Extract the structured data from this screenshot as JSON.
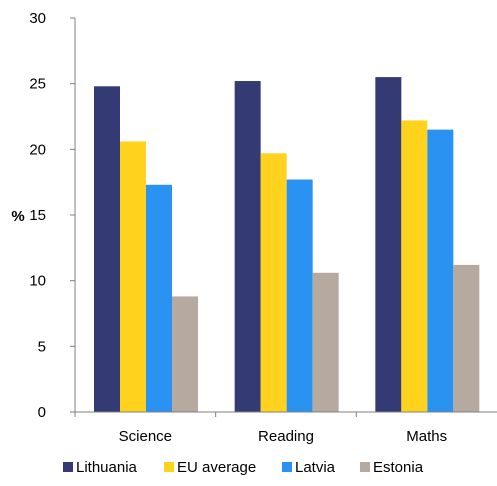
{
  "chart_data": {
    "type": "bar",
    "categories": [
      "Science",
      "Reading",
      "Maths"
    ],
    "series": [
      {
        "name": "Lithuania",
        "color": "#333a74",
        "values": [
          24.8,
          25.2,
          25.5
        ]
      },
      {
        "name": "EU average",
        "color": "#ffd21e",
        "values": [
          20.6,
          19.7,
          22.2
        ]
      },
      {
        "name": "Latvia",
        "color": "#2a93f2",
        "values": [
          17.3,
          17.7,
          21.5
        ]
      },
      {
        "name": "Estonia",
        "color": "#b5a9a0",
        "values": [
          8.8,
          10.6,
          11.2
        ]
      }
    ],
    "ylabel": "%",
    "ylim": [
      0,
      30
    ],
    "yticks": [
      0,
      5,
      10,
      15,
      20,
      25,
      30
    ],
    "grid": false,
    "legend_position": "bottom"
  }
}
